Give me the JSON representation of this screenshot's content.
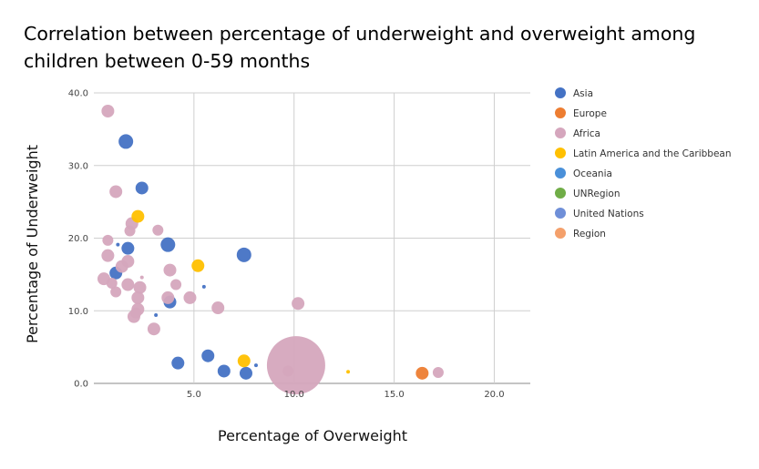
{
  "chart_data": {
    "type": "scatter",
    "title": "Correlation between percentage of underweight and overweight among children between 0-59 months",
    "xlabel": "Percentage of Overweight",
    "ylabel": "Percentage of Underweight",
    "xlim": [
      0,
      21.8
    ],
    "ylim": [
      0,
      40
    ],
    "x_ticks": [
      "5.0",
      "10.0",
      "15.0",
      "20.0"
    ],
    "y_ticks": [
      "0.0",
      "10.0",
      "20.0",
      "30.0",
      "40.0"
    ],
    "grid": "vertical-and-horizontal",
    "legend_position": "right",
    "legend": [
      {
        "name": "Asia",
        "color": "#4472c4"
      },
      {
        "name": "Europe",
        "color": "#ed7d31"
      },
      {
        "name": "Africa",
        "color": "#d5a6bd"
      },
      {
        "name": "Latin America and the Caribbean",
        "color": "#ffc000"
      },
      {
        "name": "Oceania",
        "color": "#4a90d9"
      },
      {
        "name": "UNRegion",
        "color": "#70ad47"
      },
      {
        "name": "United Nations",
        "color": "#6f8fd8"
      },
      {
        "name": "Region",
        "color": "#f4a06b"
      }
    ],
    "series": [
      {
        "name": "Asia",
        "color": "#4472c4",
        "points": [
          {
            "x": 1.6,
            "y": 33.3,
            "size": 8
          },
          {
            "x": 2.4,
            "y": 26.9,
            "size": 7
          },
          {
            "x": 1.7,
            "y": 18.6,
            "size": 7
          },
          {
            "x": 3.7,
            "y": 19.1,
            "size": 8
          },
          {
            "x": 1.1,
            "y": 15.2,
            "size": 7
          },
          {
            "x": 3.8,
            "y": 11.2,
            "size": 7
          },
          {
            "x": 7.5,
            "y": 17.7,
            "size": 8
          },
          {
            "x": 5.7,
            "y": 3.8,
            "size": 7
          },
          {
            "x": 4.2,
            "y": 2.8,
            "size": 7
          },
          {
            "x": 6.5,
            "y": 1.7,
            "size": 7
          },
          {
            "x": 7.6,
            "y": 1.4,
            "size": 7
          },
          {
            "x": 8.1,
            "y": 2.5,
            "size": 2
          },
          {
            "x": 3.1,
            "y": 9.4,
            "size": 2
          },
          {
            "x": 5.5,
            "y": 13.3,
            "size": 2
          },
          {
            "x": 1.2,
            "y": 19.1,
            "size": 2
          }
        ]
      },
      {
        "name": "Europe",
        "color": "#ed7d31",
        "points": [
          {
            "x": 16.4,
            "y": 1.4,
            "size": 7
          }
        ]
      },
      {
        "name": "Africa",
        "color": "#d5a6bd",
        "points": [
          {
            "x": 0.7,
            "y": 37.5,
            "size": 7
          },
          {
            "x": 1.1,
            "y": 26.4,
            "size": 7
          },
          {
            "x": 1.9,
            "y": 22.0,
            "size": 7
          },
          {
            "x": 1.8,
            "y": 21.0,
            "size": 6
          },
          {
            "x": 0.7,
            "y": 19.7,
            "size": 6
          },
          {
            "x": 0.7,
            "y": 17.6,
            "size": 7
          },
          {
            "x": 1.7,
            "y": 16.8,
            "size": 7
          },
          {
            "x": 1.4,
            "y": 16.1,
            "size": 7
          },
          {
            "x": 3.2,
            "y": 21.1,
            "size": 6
          },
          {
            "x": 3.8,
            "y": 15.6,
            "size": 7
          },
          {
            "x": 0.5,
            "y": 14.4,
            "size": 7
          },
          {
            "x": 0.9,
            "y": 13.8,
            "size": 6
          },
          {
            "x": 1.7,
            "y": 13.6,
            "size": 7
          },
          {
            "x": 2.3,
            "y": 13.2,
            "size": 7
          },
          {
            "x": 4.1,
            "y": 13.6,
            "size": 6
          },
          {
            "x": 1.1,
            "y": 12.6,
            "size": 6
          },
          {
            "x": 2.2,
            "y": 11.8,
            "size": 7
          },
          {
            "x": 3.7,
            "y": 11.8,
            "size": 7
          },
          {
            "x": 4.8,
            "y": 11.8,
            "size": 7
          },
          {
            "x": 2.2,
            "y": 10.2,
            "size": 7
          },
          {
            "x": 2.1,
            "y": 9.7,
            "size": 6
          },
          {
            "x": 2.0,
            "y": 9.2,
            "size": 7
          },
          {
            "x": 6.2,
            "y": 10.4,
            "size": 7
          },
          {
            "x": 3.0,
            "y": 7.5,
            "size": 7
          },
          {
            "x": 10.2,
            "y": 11.0,
            "size": 7
          },
          {
            "x": 9.7,
            "y": 1.7,
            "size": 6
          },
          {
            "x": 17.2,
            "y": 1.5,
            "size": 6
          },
          {
            "x": 10.1,
            "y": 2.5,
            "size": 32
          },
          {
            "x": 2.4,
            "y": 14.6,
            "size": 2
          }
        ]
      },
      {
        "name": "Latin America and the Caribbean",
        "color": "#ffc000",
        "points": [
          {
            "x": 2.2,
            "y": 23.0,
            "size": 7
          },
          {
            "x": 5.2,
            "y": 16.2,
            "size": 7
          },
          {
            "x": 7.5,
            "y": 3.1,
            "size": 7
          },
          {
            "x": 12.7,
            "y": 1.6,
            "size": 2
          }
        ]
      }
    ]
  }
}
